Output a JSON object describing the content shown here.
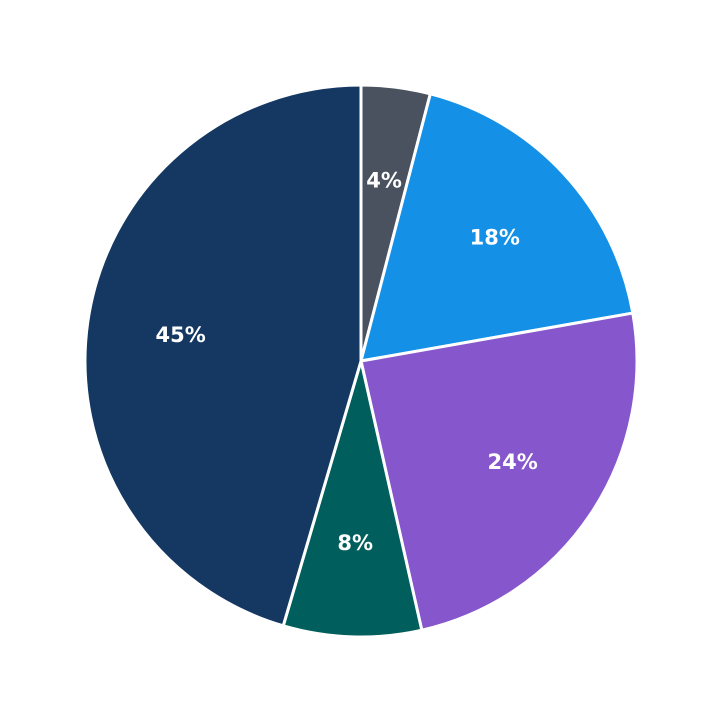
{
  "chart_data": {
    "type": "pie",
    "title": "",
    "start_angle_deg": 90,
    "direction": "clockwise",
    "slices": [
      {
        "label": "4%",
        "value": 4,
        "color": "#4a5260"
      },
      {
        "label": "18%",
        "value": 18,
        "color": "#1490e6"
      },
      {
        "label": "24%",
        "value": 24,
        "color": "#8656cc"
      },
      {
        "label": "8%",
        "value": 8,
        "color": "#005f5c"
      },
      {
        "label": "45%",
        "value": 45,
        "color": "#143862"
      }
    ],
    "legend": null,
    "label_color": "#ffffff",
    "edge_color": "#ffffff"
  }
}
